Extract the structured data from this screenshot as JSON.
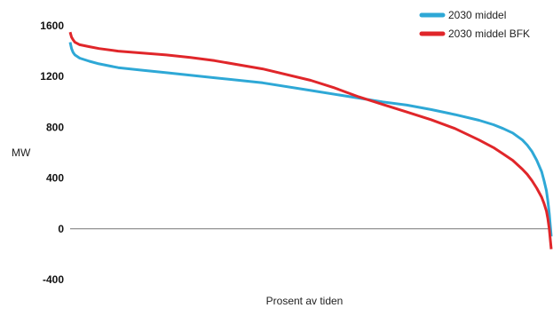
{
  "chart_data": {
    "type": "line",
    "xlabel": "Prosent av tiden",
    "ylabel": "MW",
    "xlim": [
      0,
      100
    ],
    "ylim": [
      -400,
      1600
    ],
    "yticks": [
      1600,
      1200,
      800,
      400,
      0,
      -400
    ],
    "grid": false,
    "legend_position": "top-right",
    "series": [
      {
        "name": "2030 middel",
        "color": "#2ea8d6",
        "x": [
          0,
          0.3,
          0.6,
          1,
          2,
          4,
          6,
          10,
          15,
          20,
          30,
          40,
          50,
          60,
          65,
          70,
          75,
          80,
          85,
          88,
          90,
          92,
          94,
          95,
          96,
          97,
          98,
          98.5,
          99,
          99.3,
          99.6,
          100
        ],
        "y": [
          1470,
          1420,
          1390,
          1370,
          1345,
          1320,
          1300,
          1270,
          1250,
          1230,
          1190,
          1150,
          1090,
          1030,
          1000,
          975,
          940,
          900,
          855,
          820,
          790,
          755,
          700,
          660,
          610,
          540,
          450,
          380,
          300,
          220,
          120,
          -60
        ]
      },
      {
        "name": "2030 middel BFK",
        "color": "#e0262a",
        "x": [
          0,
          0.3,
          0.6,
          1,
          2,
          4,
          6,
          10,
          15,
          20,
          25,
          30,
          40,
          50,
          55,
          60,
          65,
          70,
          75,
          80,
          85,
          88,
          90,
          92,
          94,
          95,
          96,
          97,
          98,
          98.5,
          99,
          99.3,
          99.6,
          100
        ],
        "y": [
          1550,
          1510,
          1490,
          1470,
          1450,
          1435,
          1420,
          1400,
          1385,
          1370,
          1350,
          1325,
          1260,
          1170,
          1110,
          1040,
          980,
          920,
          860,
          790,
          700,
          640,
          590,
          540,
          470,
          430,
          380,
          320,
          250,
          200,
          140,
          80,
          0,
          -160
        ]
      }
    ]
  }
}
